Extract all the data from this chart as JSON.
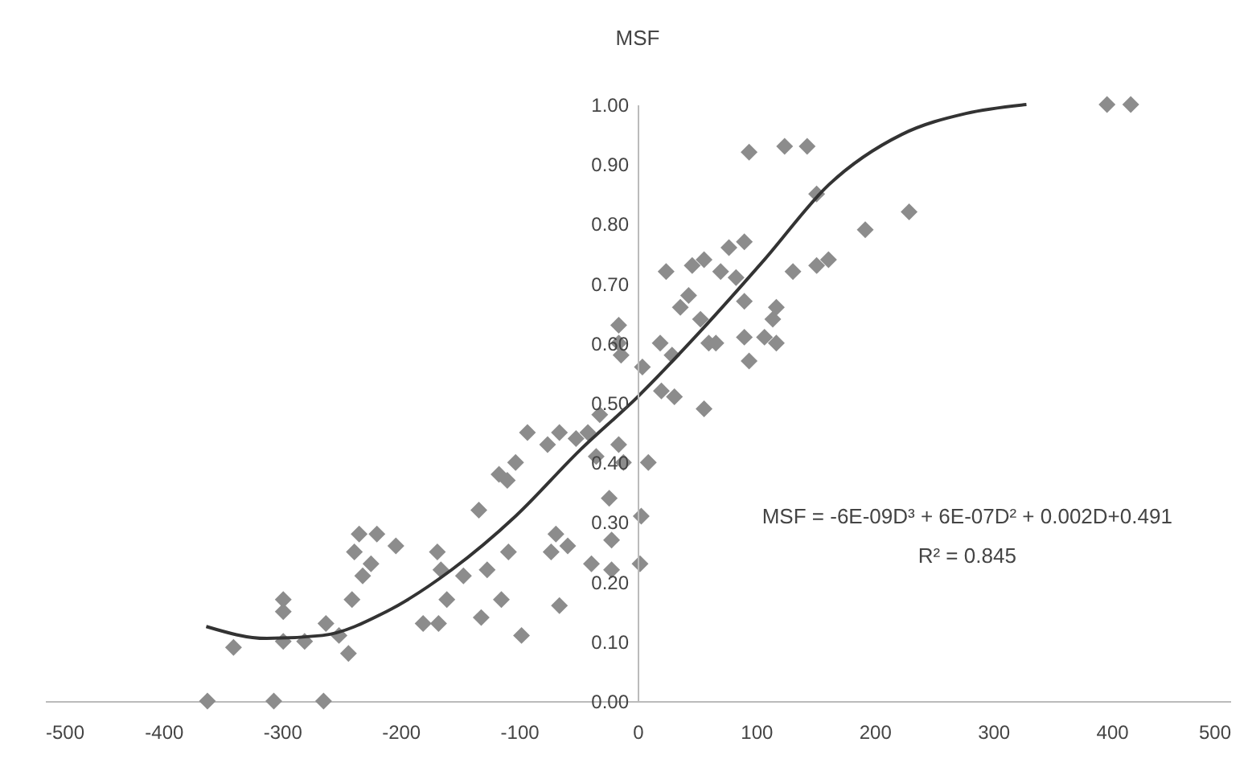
{
  "chart_data": {
    "type": "scatter",
    "title": "MSF",
    "grid": false,
    "xlim": [
      -500,
      500
    ],
    "xticks": [
      -500,
      -400,
      -300,
      -200,
      -100,
      0,
      100,
      200,
      300,
      400,
      500
    ],
    "ylim": [
      0,
      1
    ],
    "yticks": [
      {
        "value": 0,
        "label": "0.00"
      },
      {
        "value": 0.1,
        "label": "0.10"
      },
      {
        "value": 0.2,
        "label": "0.20"
      },
      {
        "value": 0.3,
        "label": "0.30"
      },
      {
        "value": 0.4,
        "label": "0.40"
      },
      {
        "value": 0.5,
        "label": "0.50"
      },
      {
        "value": 0.6,
        "label": "0.60"
      },
      {
        "value": 0.7,
        "label": "0.70"
      },
      {
        "value": 0.8,
        "label": "0.80"
      },
      {
        "value": 0.9,
        "label": "0.90"
      },
      {
        "value": 1,
        "label": "1.00"
      }
    ],
    "annotations": [
      "MSF = -6E-09D³ + 6E-07D² + 0.002D+0.491",
      "R² = 0.845"
    ],
    "series": [
      {
        "color": "#8c8c8c",
        "marker": "diamond",
        "x": [
          -363,
          -307,
          -265,
          -341,
          -299,
          -299,
          -299,
          -281,
          -263,
          -252,
          -244,
          -241,
          -239,
          -235,
          -232,
          -225,
          -220,
          -204,
          -181,
          -168,
          -169,
          -161,
          -166,
          -147,
          -134,
          -132,
          -127,
          -115,
          -109,
          -110,
          -117,
          -103,
          -98,
          -93,
          -73,
          -66,
          -69,
          -59,
          -76,
          -66,
          -52,
          -42,
          -32,
          -35,
          -24,
          -39,
          -22,
          -22,
          -16,
          -12,
          9,
          3,
          2,
          -16,
          -14,
          4,
          -16,
          19,
          24,
          29,
          20,
          31,
          36,
          43,
          46,
          56,
          56,
          53,
          60,
          66,
          70,
          77,
          83,
          90,
          94,
          90,
          90,
          94,
          107,
          117,
          117,
          114,
          124,
          143,
          131,
          151,
          151,
          161,
          192,
          229,
          396,
          416
        ],
        "values": [
          0,
          0,
          0,
          0.09,
          0.17,
          0.15,
          0.1,
          0.1,
          0.13,
          0.11,
          0.08,
          0.17,
          0.25,
          0.28,
          0.21,
          0.23,
          0.28,
          0.26,
          0.13,
          0.13,
          0.25,
          0.17,
          0.22,
          0.21,
          0.32,
          0.14,
          0.22,
          0.17,
          0.25,
          0.37,
          0.38,
          0.4,
          0.11,
          0.45,
          0.25,
          0.16,
          0.28,
          0.26,
          0.43,
          0.45,
          0.44,
          0.45,
          0.48,
          0.41,
          0.34,
          0.23,
          0.22,
          0.27,
          0.43,
          0.4,
          0.4,
          0.31,
          0.23,
          0.63,
          0.58,
          0.56,
          0.6,
          0.6,
          0.72,
          0.58,
          0.52,
          0.51,
          0.66,
          0.68,
          0.73,
          0.74,
          0.49,
          0.64,
          0.6,
          0.6,
          0.72,
          0.76,
          0.71,
          0.77,
          0.92,
          0.67,
          0.61,
          0.57,
          0.61,
          0.6,
          0.66,
          0.64,
          0.93,
          0.93,
          0.72,
          0.85,
          0.73,
          0.74,
          0.79,
          0.82,
          1,
          1
        ]
      },
      {
        "type": "line",
        "color": "#333333",
        "x": [
          -364,
          -313,
          -266,
          -212,
          -157,
          -103,
          -49,
          0,
          53,
          107,
          161,
          223,
          277,
          328
        ],
        "values": [
          0.125,
          0.105,
          0.11,
          0.15,
          0.22,
          0.31,
          0.42,
          0.51,
          0.62,
          0.74,
          0.865,
          0.95,
          0.985,
          1
        ]
      }
    ]
  }
}
